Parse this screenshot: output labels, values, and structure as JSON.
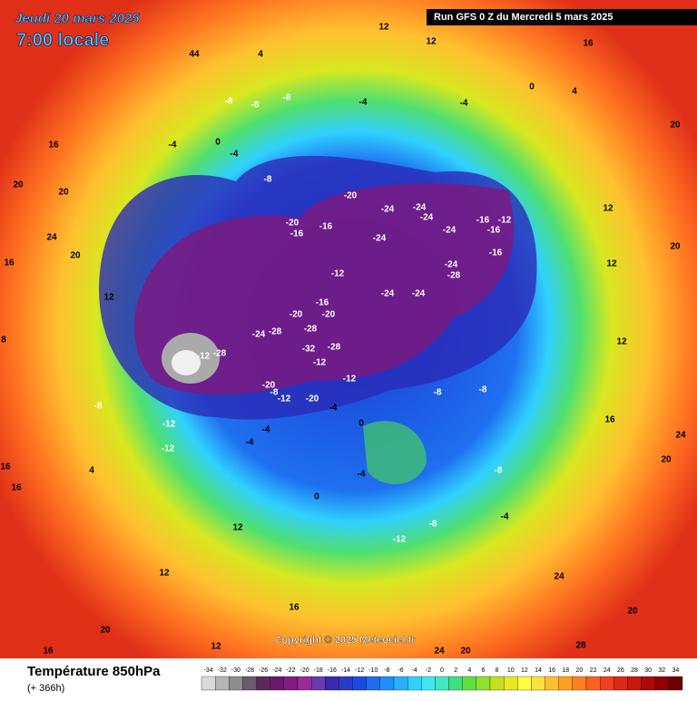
{
  "header": {
    "valid": "Jeudi 20 mars 2025",
    "local_time": "7:00 locale",
    "run": "Run GFS 0 Z du Mercredi 5 mars 2025"
  },
  "copyright": "Copyright © 2025 Meteociel.fr",
  "footer": {
    "title": "Température 850hPa",
    "lead": "(+ 366h)"
  },
  "scale": {
    "ticks": [
      -34,
      -32,
      -30,
      -28,
      -26,
      -24,
      -22,
      -20,
      -18,
      -16,
      -14,
      -12,
      -10,
      -8,
      -6,
      -4,
      -2,
      0,
      2,
      4,
      6,
      8,
      10,
      12,
      14,
      16,
      18,
      20,
      22,
      24,
      26,
      28,
      30,
      32,
      34
    ],
    "colors": [
      "#d9d9d9",
      "#b4b4b4",
      "#8e8e8e",
      "#6e5a6e",
      "#5a2a5a",
      "#6a1a6a",
      "#801c80",
      "#9a2a9a",
      "#6a3ab0",
      "#3a2ab0",
      "#2a3ac8",
      "#1a4ae0",
      "#1e6cf0",
      "#1e90ff",
      "#28b0ff",
      "#30d0ff",
      "#40e8f0",
      "#40e8c0",
      "#40e080",
      "#60e040",
      "#90e030",
      "#c0e020",
      "#e8e820",
      "#ffff40",
      "#ffe040",
      "#ffc030",
      "#ffa020",
      "#ff8020",
      "#ff6020",
      "#f04020",
      "#e02818",
      "#c81810",
      "#b00808",
      "#900000",
      "#700000"
    ]
  },
  "labels": [
    12,
    12,
    16,
    44,
    4,
    -8,
    -8,
    -8,
    -4,
    -4,
    0,
    4,
    20,
    16,
    -4,
    0,
    -4,
    -8,
    -20,
    -24,
    -24,
    -24,
    -16,
    -12,
    -16,
    -16,
    -20,
    -16,
    -24,
    -24,
    -16,
    -24,
    -28,
    -12,
    -24,
    -24,
    -16,
    -20,
    -20,
    -24,
    -28,
    -28,
    -28,
    -32,
    -28,
    -12,
    -12,
    -12,
    -20,
    -8,
    -12,
    -20,
    -8,
    -8,
    -4,
    -8,
    -12,
    -12,
    -4,
    -4,
    0,
    4,
    -8,
    -4,
    0,
    -8,
    -12,
    -4,
    12,
    12,
    16,
    20,
    16,
    12,
    24,
    20,
    24,
    20,
    28,
    20,
    24,
    16,
    12,
    12,
    12,
    20,
    20,
    24,
    20,
    16,
    12,
    8,
    16,
    16,
    20
  ]
}
